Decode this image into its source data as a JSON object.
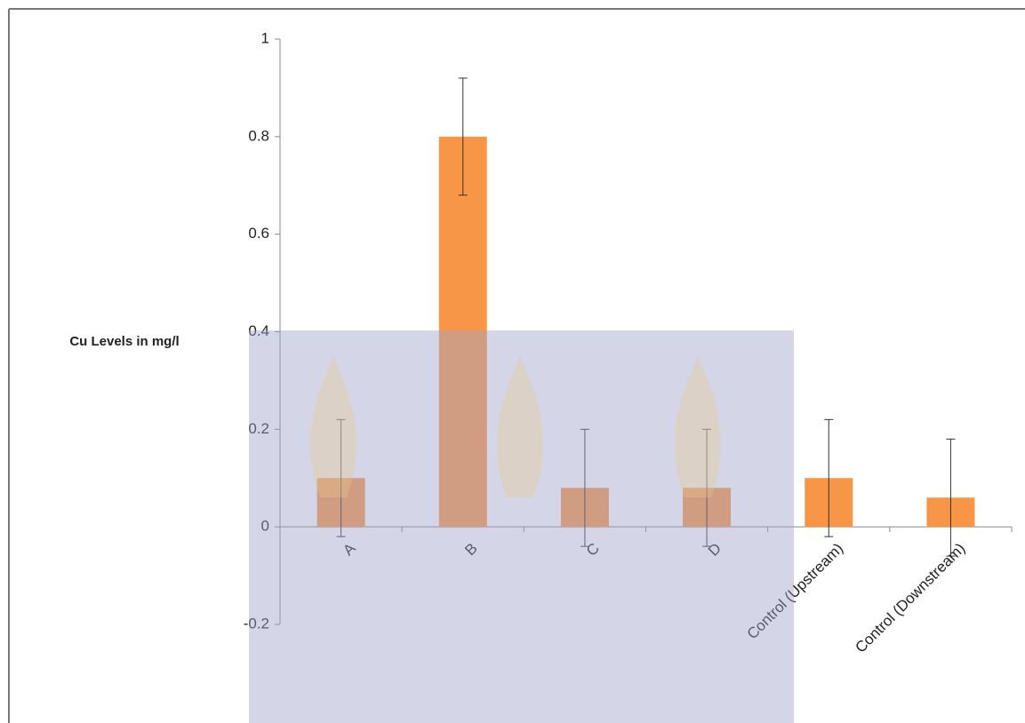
{
  "chart_data": {
    "type": "bar",
    "y_label": "Cu Levels in mg/l",
    "categories": [
      "A",
      "B",
      "C",
      "D",
      "Control (Upstream)",
      "Control (Downstream)"
    ],
    "values": [
      0.1,
      0.8,
      0.08,
      0.08,
      0.1,
      0.06
    ],
    "errors": [
      0.12,
      0.12,
      0.12,
      0.12,
      0.12,
      0.12
    ],
    "color": "#f79646",
    "ylim": [
      -0.2,
      1
    ],
    "yticks": [
      -0.2,
      0,
      0.2,
      0.4,
      0.6,
      0.8,
      1
    ]
  }
}
